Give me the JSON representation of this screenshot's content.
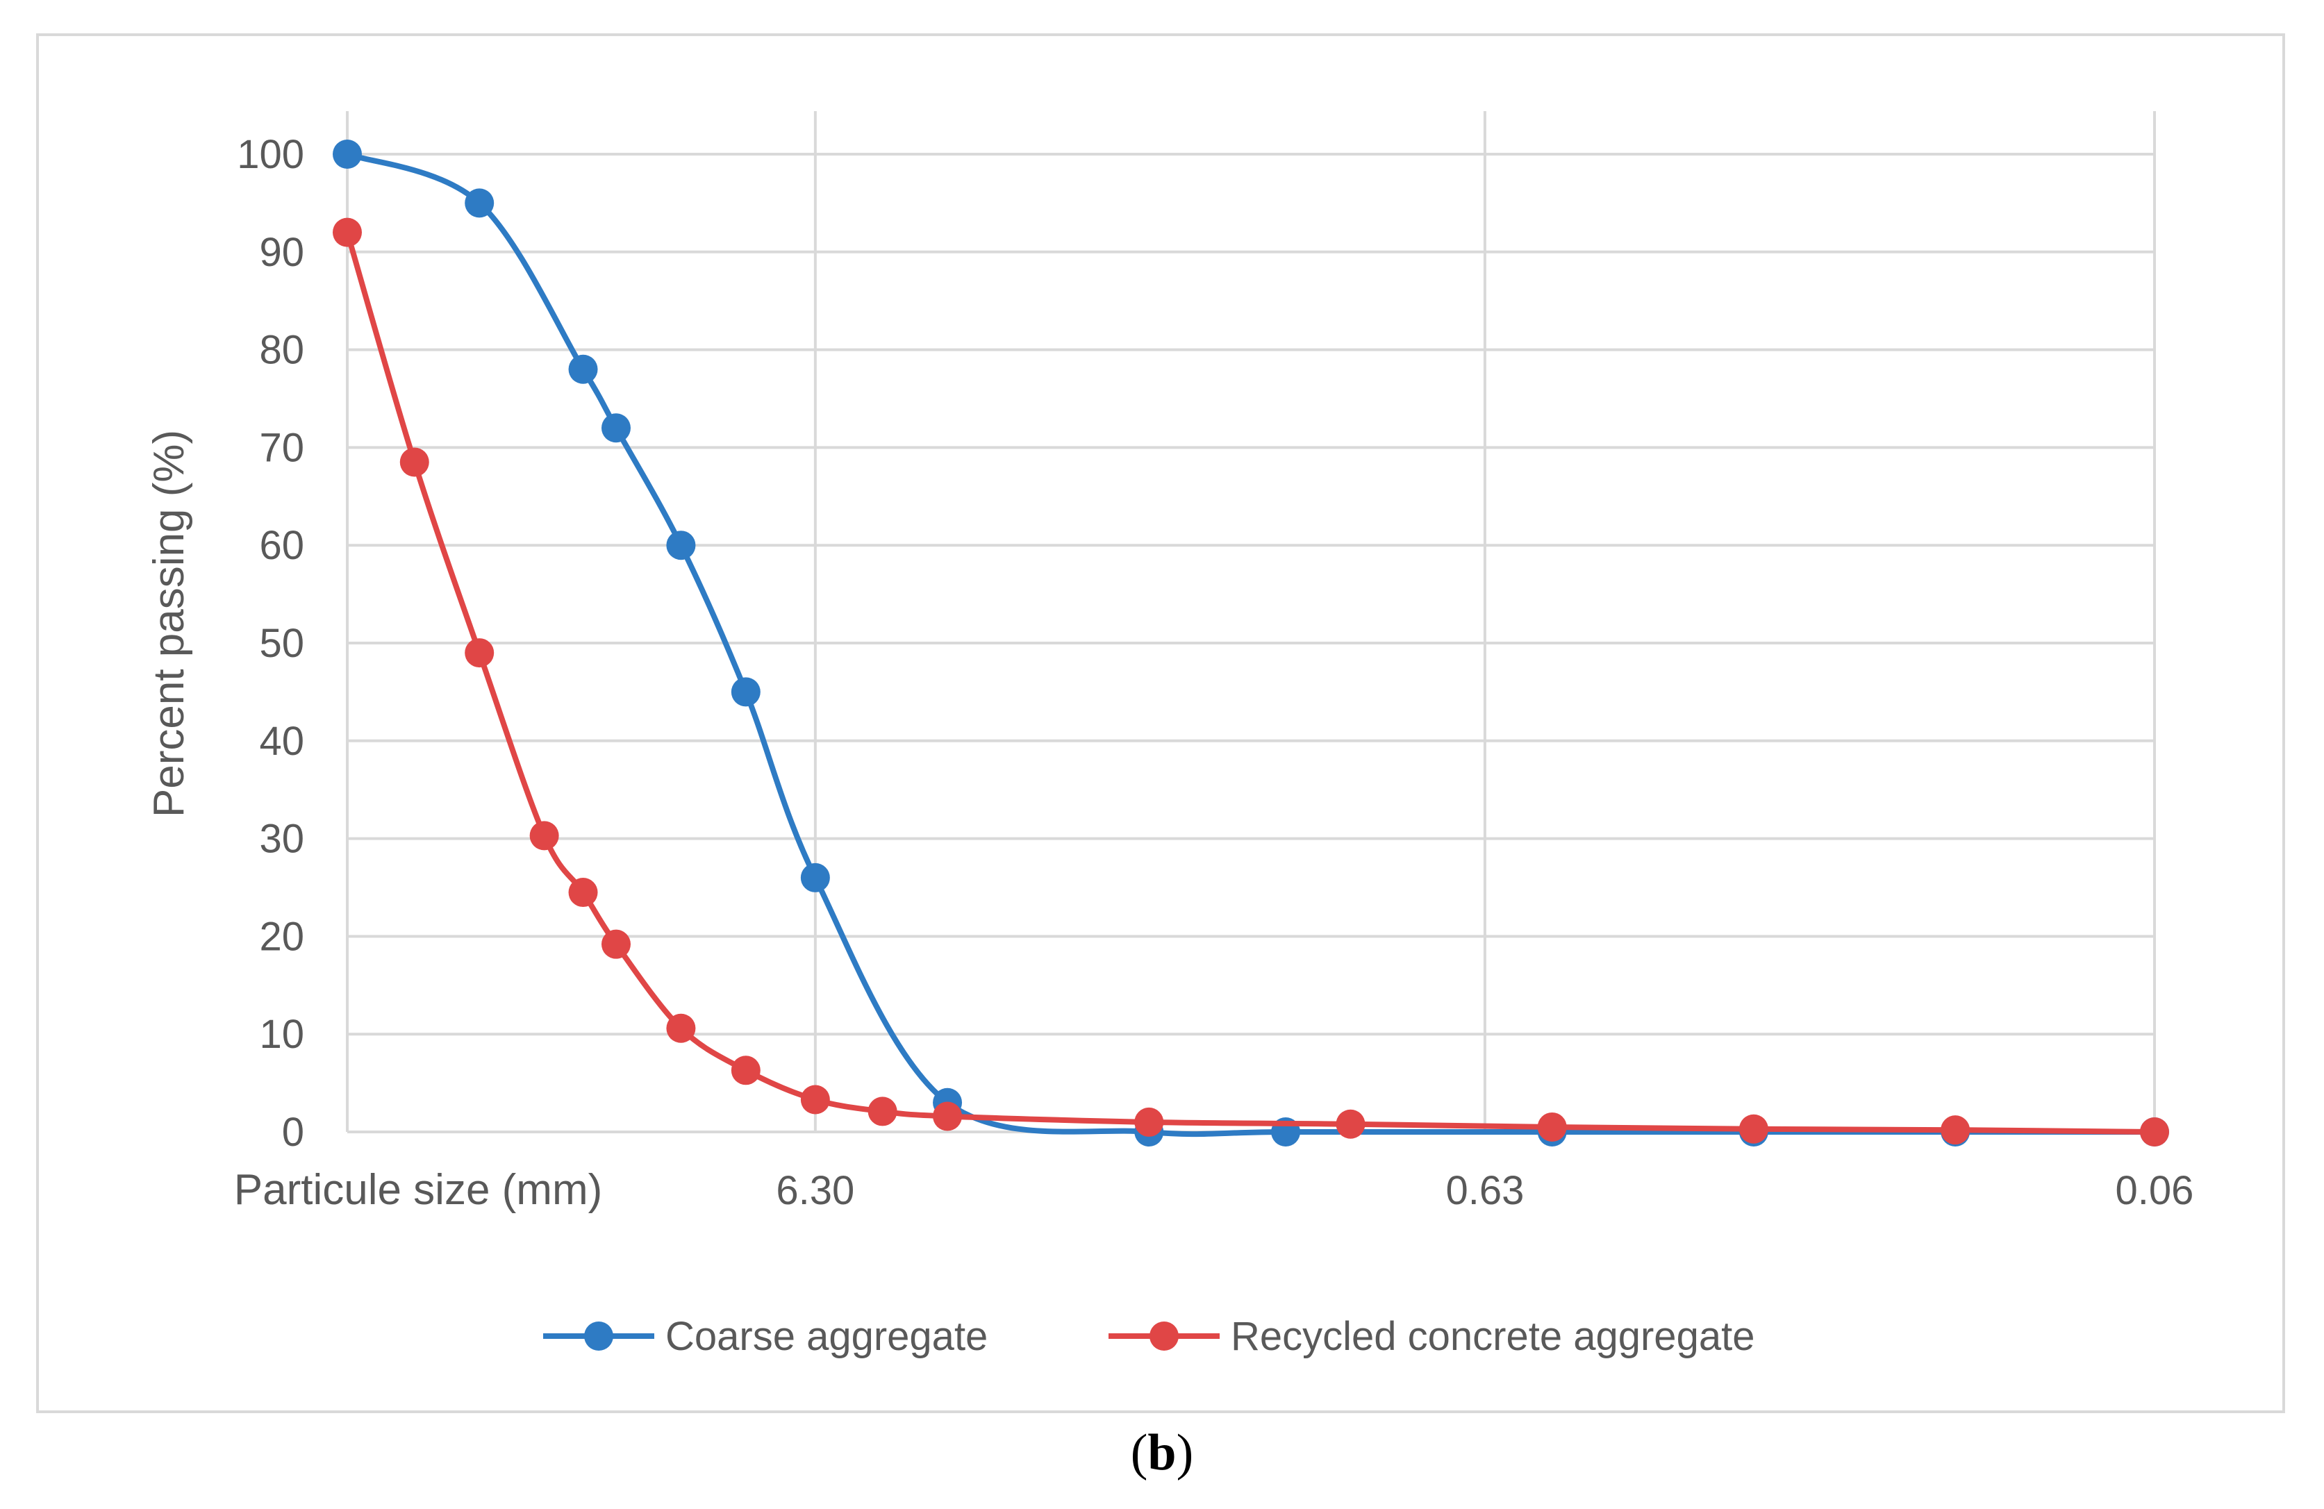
{
  "caption": {
    "open": "(",
    "label": "b",
    "close": ")"
  },
  "colors": {
    "coarse": "#2E7BC4",
    "recycled": "#E04646",
    "grid": "#d9d9d9",
    "text": "#595959"
  },
  "chart_data": {
    "type": "line",
    "title": "",
    "xlabel": "Particule size (mm)",
    "ylabel": "Percent passing  (%)",
    "ylim": [
      0,
      100
    ],
    "yticks": [
      0,
      10,
      20,
      30,
      40,
      50,
      60,
      70,
      80,
      90,
      100
    ],
    "x_scale": "log (sieve size, decreasing to the right)",
    "x_ticks": [
      {
        "label": "6.30",
        "value": 6.3
      },
      {
        "label": "0.63",
        "value": 0.63
      },
      {
        "label": "0.06",
        "value": 0.063
      }
    ],
    "grid": true,
    "legend_position": "bottom",
    "series": [
      {
        "name": "Coarse aggregate",
        "color": "#2E7BC4",
        "points": [
          {
            "x": 31.5,
            "y": 100
          },
          {
            "x": 20,
            "y": 95
          },
          {
            "x": 14,
            "y": 78
          },
          {
            "x": 12.5,
            "y": 72
          },
          {
            "x": 10,
            "y": 60
          },
          {
            "x": 8,
            "y": 45
          },
          {
            "x": 6.3,
            "y": 26
          },
          {
            "x": 4,
            "y": 3
          },
          {
            "x": 2,
            "y": 0
          },
          {
            "x": 1.25,
            "y": 0
          },
          {
            "x": 0.5,
            "y": 0
          },
          {
            "x": 0.25,
            "y": 0
          },
          {
            "x": 0.125,
            "y": 0
          },
          {
            "x": 0.063,
            "y": 0
          }
        ]
      },
      {
        "name": "Recycled concrete aggregate",
        "color": "#E04646",
        "points": [
          {
            "x": 31.5,
            "y": 92
          },
          {
            "x": 25,
            "y": 68.5
          },
          {
            "x": 20,
            "y": 49
          },
          {
            "x": 16,
            "y": 30.3
          },
          {
            "x": 14,
            "y": 24.5
          },
          {
            "x": 12.5,
            "y": 19.2
          },
          {
            "x": 10,
            "y": 10.6
          },
          {
            "x": 8,
            "y": 6.3
          },
          {
            "x": 6.3,
            "y": 3.3
          },
          {
            "x": 5,
            "y": 2.1
          },
          {
            "x": 4,
            "y": 1.6
          },
          {
            "x": 2,
            "y": 1
          },
          {
            "x": 1,
            "y": 0.8
          },
          {
            "x": 0.5,
            "y": 0.5
          },
          {
            "x": 0.25,
            "y": 0.3
          },
          {
            "x": 0.125,
            "y": 0.2
          },
          {
            "x": 0.063,
            "y": 0
          }
        ]
      }
    ]
  }
}
